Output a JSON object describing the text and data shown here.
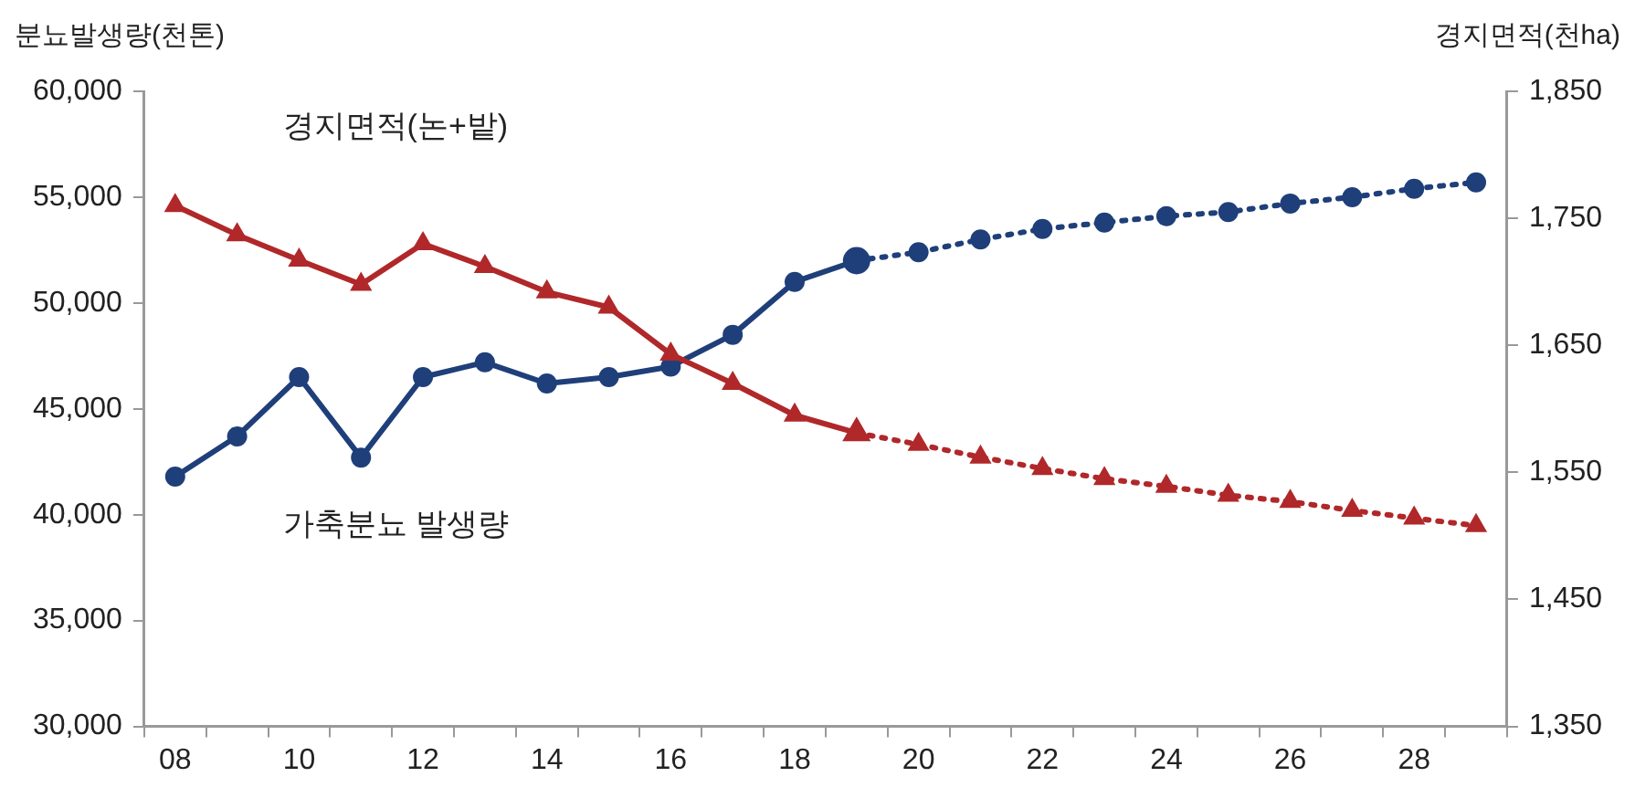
{
  "chart_data": {
    "type": "line",
    "ylabel": "분뇨발생량(천톤)",
    "y2label": "경지면적(천ha)",
    "categories": [
      "08",
      null,
      "10",
      null,
      "12",
      null,
      "14",
      null,
      "16",
      null,
      "18",
      null,
      "20",
      null,
      "22",
      null,
      "24",
      null,
      "26",
      null,
      "28",
      null
    ],
    "series": [
      {
        "name": "경지면적(논+밭)",
        "color": "#b0282a",
        "axis": "y2",
        "marker": "triangle",
        "line_style": "solid",
        "values": [
          1760,
          1737,
          1717,
          1698,
          1730,
          1712,
          1692,
          1680,
          1643,
          1620,
          1595,
          1581,
          null,
          null,
          null,
          null,
          null,
          null,
          null,
          null,
          null,
          null
        ]
      },
      {
        "color": "#b0282a",
        "axis": "y2",
        "marker": "triangle",
        "line_style": "dotted",
        "values": [
          null,
          null,
          null,
          null,
          null,
          null,
          null,
          null,
          null,
          null,
          null,
          1581,
          1572,
          1562,
          1553,
          1545,
          1539,
          1532,
          1527,
          1520,
          1514,
          1508
        ]
      },
      {
        "name": "가축분뇨 발생량",
        "color": "#1f3f7a",
        "marker": "circle",
        "line_style": "solid",
        "values": [
          41800,
          43700,
          46500,
          42700,
          46500,
          47200,
          46200,
          46500,
          47000,
          48500,
          51000,
          52000,
          null,
          null,
          null,
          null,
          null,
          null,
          null,
          null,
          null,
          null
        ]
      },
      {
        "color": "#1f3f7a",
        "marker": "circle",
        "line_style": "dotted",
        "values": [
          null,
          null,
          null,
          null,
          null,
          null,
          null,
          null,
          null,
          null,
          null,
          52000,
          52400,
          53000,
          53500,
          53800,
          54100,
          54300,
          54700,
          55000,
          55400,
          55700
        ]
      }
    ],
    "ylim": [
      30000,
      60000
    ],
    "yticks": [
      {
        "value": 30000,
        "label": "30,000"
      },
      {
        "value": 35000,
        "label": "35,000"
      },
      {
        "value": 40000,
        "label": "40,000"
      },
      {
        "value": 45000,
        "label": "45,000"
      },
      {
        "value": 50000,
        "label": "50,000"
      },
      {
        "value": 55000,
        "label": "55,000"
      },
      {
        "value": 60000,
        "label": "60,000"
      }
    ],
    "y2lim": [
      1350,
      1850
    ],
    "y2ticks": [
      {
        "value": 1350,
        "label": "1,350"
      },
      {
        "value": 1450,
        "label": "1,450"
      },
      {
        "value": 1550,
        "label": "1,550"
      },
      {
        "value": 1650,
        "label": "1,650"
      },
      {
        "value": 1750,
        "label": "1,750"
      },
      {
        "value": 1850,
        "label": "1,850"
      }
    ],
    "grid": false,
    "legend": false
  }
}
